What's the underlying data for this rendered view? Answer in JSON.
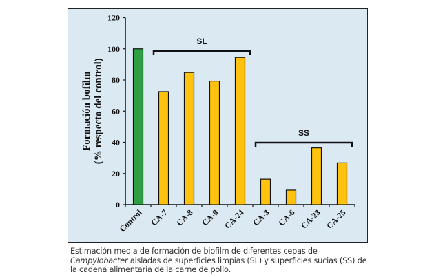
{
  "chart_data": {
    "type": "bar",
    "title": "",
    "xlabel": "",
    "ylabel": [
      "Formación bofilm",
      "(% respecto del control)"
    ],
    "ylim": [
      0,
      120
    ],
    "yticks": [
      0,
      20,
      40,
      60,
      80,
      100,
      120
    ],
    "grid": false,
    "categories": [
      "Control",
      "CA-7",
      "CA-8",
      "CA-9",
      "CA-24",
      "CA-3",
      "CA-6",
      "CA-23",
      "CA-25"
    ],
    "values": [
      100,
      72.5,
      84.8,
      79.3,
      94.5,
      16.3,
      9.3,
      36.4,
      26.8
    ],
    "colors": [
      "#2ea043",
      "#ffc20e",
      "#ffc20e",
      "#ffc20e",
      "#ffc20e",
      "#ffc20e",
      "#ffc20e",
      "#ffc20e",
      "#ffc20e"
    ],
    "annotations": [
      {
        "label": "SL",
        "from": "CA-7",
        "to": "CA-24"
      },
      {
        "label": "SS",
        "from": "CA-3",
        "to": "CA-25"
      }
    ]
  },
  "caption": {
    "before": "Estimación media de formación de biofilm de diferentes cepas de ",
    "italic": "Campylobacter",
    "after": " aisladas de superficies limpias (SL) y superficies sucias (SS) de la cadena alimentaria de la carne de pollo."
  }
}
